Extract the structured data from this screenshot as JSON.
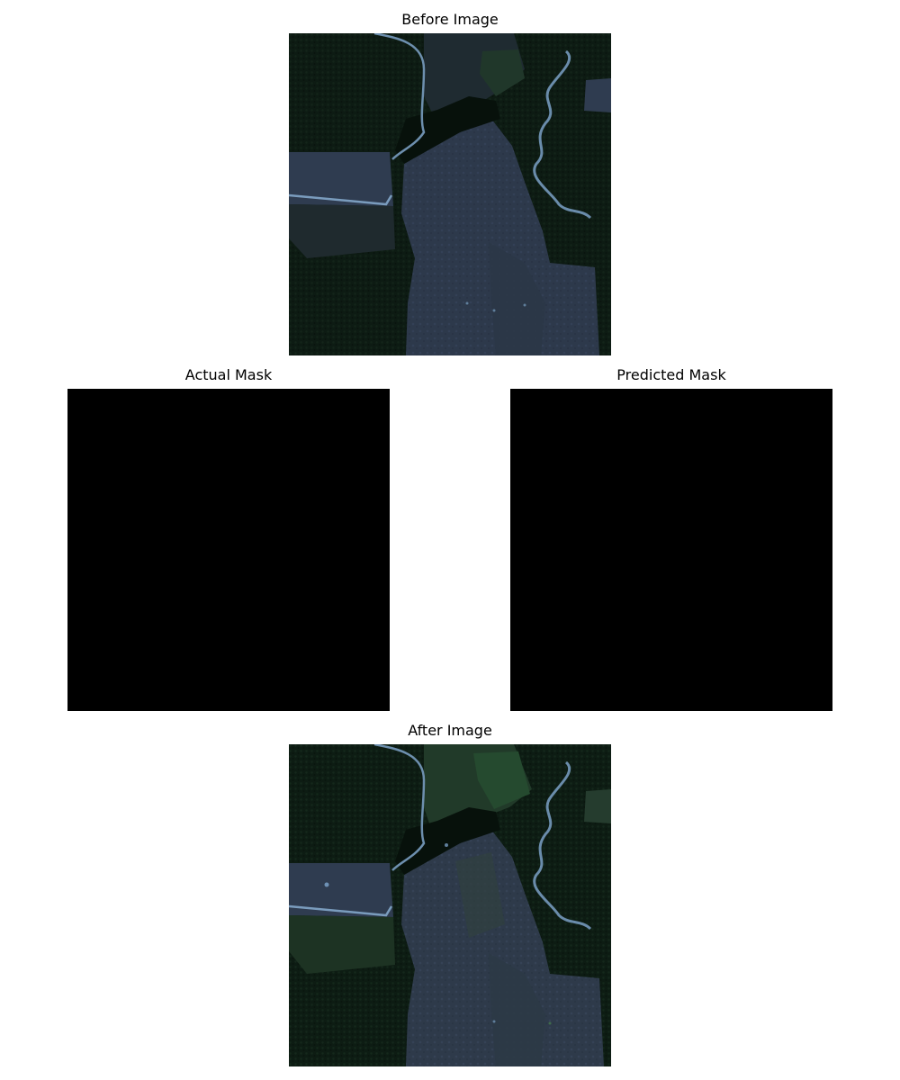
{
  "panels": {
    "before": {
      "title": "Before Image"
    },
    "actual_mask": {
      "title": "Actual Mask"
    },
    "predicted_mask": {
      "title": "Predicted Mask"
    },
    "after": {
      "title": "After Image"
    }
  },
  "colors": {
    "background": "#ffffff",
    "forest": "#0c1a12",
    "cleared_land": "#2e3a4c",
    "river": "#6f90b0",
    "mask_fill": "#000000"
  }
}
